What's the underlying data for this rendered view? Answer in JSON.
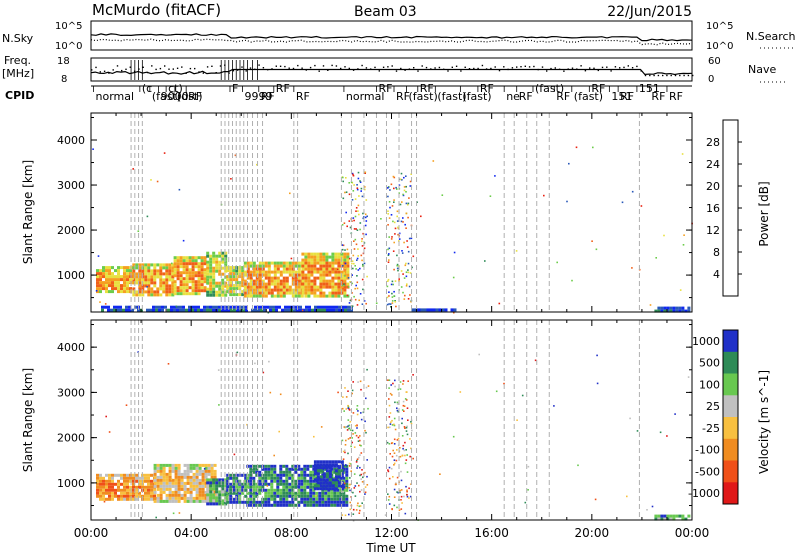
{
  "header": {
    "station": "McMurdo (fitACF)",
    "beam": "Beam 03",
    "date": "22/Jun/2015"
  },
  "panels": {
    "noise": {
      "left_label": "N.Sky",
      "left_ticks": [
        "10^5",
        "10^0"
      ],
      "right_label": "N.Search",
      "right_ticks": [
        "10^5",
        "10^0"
      ]
    },
    "freq": {
      "left_label": "Freq.",
      "left_unit": "[MHz]",
      "left_ticks": [
        "18",
        "8"
      ],
      "right_label": "Nave",
      "right_ticks": [
        "60",
        "0"
      ]
    },
    "cpid": {
      "label": "CPID",
      "labels": [
        {
          "t": 0.1,
          "text": "normal"
        },
        {
          "t": 1.95,
          "text": "(c"
        },
        {
          "t": 2.35,
          "text": "(fast)"
        },
        {
          "t": 2.7,
          "text": "9000"
        },
        {
          "t": 3.0,
          "text": "ct)"
        },
        {
          "t": 3.35,
          "text": "(dst)"
        },
        {
          "t": 3.8,
          "text": "RF"
        },
        {
          "t": 5.55,
          "text": "F"
        },
        {
          "t": 6.05,
          "text": "9999"
        },
        {
          "t": 6.7,
          "text": "RF"
        },
        {
          "t": 7.3,
          "text": "RF"
        },
        {
          "t": 8.1,
          "text": "RF"
        },
        {
          "t": 10.1,
          "text": "normal"
        },
        {
          "t": 11.4,
          "text": "RF"
        },
        {
          "t": 12.1,
          "text": "RF"
        },
        {
          "t": 12.6,
          "text": "(fast)"
        },
        {
          "t": 13.05,
          "text": "RF"
        },
        {
          "t": 13.75,
          "text": "(fast)"
        },
        {
          "t": 14.75,
          "text": "(fast)"
        },
        {
          "t": 15.45,
          "text": "RF"
        },
        {
          "t": 16.5,
          "text": "ne"
        },
        {
          "t": 17.0,
          "text": "RF"
        },
        {
          "t": 17.65,
          "text": "(fast)"
        },
        {
          "t": 18.5,
          "text": "RF"
        },
        {
          "t": 19.2,
          "text": "(fast)"
        },
        {
          "t": 19.9,
          "text": "RF"
        },
        {
          "t": 20.7,
          "text": "151"
        },
        {
          "t": 21.05,
          "text": "RF"
        },
        {
          "t": 21.8,
          "text": "151"
        },
        {
          "t": 22.3,
          "text": "RF"
        },
        {
          "t": 23.0,
          "text": "RF"
        }
      ]
    }
  },
  "xaxis": {
    "label": "Time UT",
    "ticks": [
      "00:00",
      "04:00",
      "08:00",
      "12:00",
      "16:00",
      "20:00",
      "00:00"
    ]
  },
  "yaxis": {
    "label": "Slant Range [km]",
    "ticks": [
      "1000",
      "2000",
      "3000",
      "4000"
    ]
  },
  "power_colorbar": {
    "label": "Power [dB]",
    "ticks": [
      "4",
      "8",
      "12",
      "16",
      "20",
      "24",
      "28"
    ],
    "colors": [
      "#1028f0",
      "#2858b8",
      "#2e8b57",
      "#6ccc4a",
      "#e8e040",
      "#f5a020",
      "#f06018",
      "#e82010"
    ]
  },
  "velocity_colorbar": {
    "label": "Velocity [m s^-1]",
    "ticks": [
      "1000",
      "500",
      "100",
      "25",
      "-25",
      "-100",
      "-500",
      "-1000"
    ],
    "colors": [
      "#2030c8",
      "#2e8b57",
      "#68c850",
      "#c0c0c0",
      "#f8c040",
      "#f08c20",
      "#f05018",
      "#e01818"
    ]
  },
  "chart_data": [
    {
      "type": "heatmap",
      "title": "Power [dB]",
      "xlabel": "Time UT",
      "ylabel": "Slant Range [km]",
      "xlim": [
        0,
        24
      ],
      "ylim": [
        180,
        4600
      ],
      "grid": false,
      "regions": [
        {
          "t0": 0.2,
          "t1": 1.65,
          "r0": 620,
          "r1": 1200,
          "level": 5
        },
        {
          "t0": 1.65,
          "t1": 3.3,
          "r0": 560,
          "r1": 1260,
          "level": 5
        },
        {
          "t0": 3.3,
          "t1": 4.6,
          "r0": 600,
          "r1": 1420,
          "level": 5
        },
        {
          "t0": 4.6,
          "t1": 5.4,
          "r0": 560,
          "r1": 1520,
          "level": 4
        },
        {
          "t0": 5.4,
          "t1": 6.1,
          "r0": 560,
          "r1": 1200,
          "level": 4
        },
        {
          "t0": 6.1,
          "t1": 8.4,
          "r0": 540,
          "r1": 1300,
          "level": 5
        },
        {
          "t0": 8.4,
          "t1": 10.2,
          "r0": 520,
          "r1": 1500,
          "level": 5
        },
        {
          "t0": 0.4,
          "t1": 10.4,
          "r0": 200,
          "r1": 320,
          "level": 1
        },
        {
          "t0": 12.8,
          "t1": 14.5,
          "r0": 200,
          "r1": 260,
          "level": 1
        },
        {
          "t0": 22.5,
          "t1": 23.9,
          "r0": 200,
          "r1": 300,
          "level": 1
        }
      ],
      "scatter_bands": [
        {
          "t0": 10.0,
          "t1": 11.0,
          "r0": 300,
          "r1": 3300
        },
        {
          "t0": 11.8,
          "t1": 12.8,
          "r0": 300,
          "r1": 3300
        }
      ]
    },
    {
      "type": "heatmap",
      "title": "Velocity [m s^-1]",
      "xlabel": "Time UT",
      "ylabel": "Slant Range [km]",
      "xlim": [
        0,
        24
      ],
      "ylim": [
        180,
        4600
      ],
      "grid": false,
      "regions": [
        {
          "t0": 0.2,
          "t1": 2.5,
          "r0": 620,
          "r1": 1200,
          "level": 5
        },
        {
          "t0": 2.5,
          "t1": 5.0,
          "r0": 600,
          "r1": 1420,
          "level": 4
        },
        {
          "t0": 4.6,
          "t1": 5.4,
          "r0": 560,
          "r1": 1100,
          "level": 2
        },
        {
          "t0": 5.4,
          "t1": 6.2,
          "r0": 540,
          "r1": 1200,
          "level": 1
        },
        {
          "t0": 6.2,
          "t1": 10.2,
          "r0": 520,
          "r1": 1400,
          "level": 1
        },
        {
          "t0": 8.9,
          "t1": 10.0,
          "r0": 900,
          "r1": 1500,
          "level": 0
        },
        {
          "t0": 22.5,
          "t1": 23.9,
          "r0": 200,
          "r1": 300,
          "level": 2
        }
      ],
      "scatter_bands": [
        {
          "t0": 10.0,
          "t1": 11.0,
          "r0": 300,
          "r1": 3300
        },
        {
          "t0": 11.8,
          "t1": 12.8,
          "r0": 300,
          "r1": 3300
        }
      ]
    }
  ],
  "dashed_times": [
    1.6,
    1.75,
    1.9,
    2.05,
    5.2,
    5.35,
    5.5,
    5.65,
    5.8,
    5.95,
    6.1,
    6.25,
    6.45,
    6.65,
    6.85,
    8.1,
    8.25,
    10.0,
    10.4,
    10.9,
    11.4,
    11.8,
    12.3,
    12.8,
    13.0,
    16.5,
    16.9,
    17.4,
    17.8,
    18.3,
    21.9
  ]
}
